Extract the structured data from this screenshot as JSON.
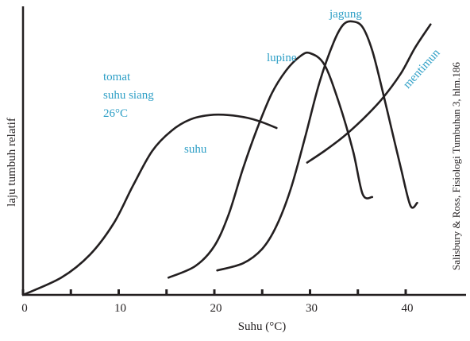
{
  "chart_data": {
    "type": "line",
    "xlabel": "Suhu (°C)",
    "ylabel": "laju tumbuh relatif",
    "xlim": [
      0,
      46
    ],
    "ylim": [
      0,
      1
    ],
    "x_ticks": [
      0,
      5,
      10,
      15,
      20,
      25,
      30,
      35,
      40
    ],
    "x_tick_labels": [
      "0",
      "10",
      "20",
      "30",
      "40"
    ],
    "x_tick_label_values": [
      0,
      10,
      20,
      30,
      40
    ],
    "grid": false,
    "legend": "none",
    "series": [
      {
        "name": "tomat",
        "x": [
          0,
          4,
          7,
          9.5,
          11.5,
          13.5,
          15.5,
          17.5,
          19.5,
          21.5,
          23.5,
          25,
          26.5
        ],
        "y": [
          0,
          0.06,
          0.14,
          0.25,
          0.38,
          0.5,
          0.57,
          0.61,
          0.625,
          0.625,
          0.615,
          0.6,
          0.58
        ]
      },
      {
        "name": "lupine",
        "x": [
          15.2,
          18,
          20,
          21.5,
          23,
          24.5,
          26,
          27.5,
          29,
          30,
          31.5,
          33,
          34.5,
          35.5,
          36.5
        ],
        "y": [
          0.06,
          0.1,
          0.17,
          0.28,
          0.44,
          0.58,
          0.7,
          0.78,
          0.83,
          0.84,
          0.8,
          0.67,
          0.5,
          0.35,
          0.34
        ]
      },
      {
        "name": "jagung",
        "x": [
          20.3,
          23,
          25,
          26.5,
          28,
          29.5,
          31,
          32.5,
          33.5,
          34.5,
          35.5,
          36.5,
          37.5,
          38.5,
          39.5,
          40.5,
          41.2
        ],
        "y": [
          0.085,
          0.11,
          0.16,
          0.24,
          0.37,
          0.55,
          0.74,
          0.88,
          0.94,
          0.95,
          0.93,
          0.85,
          0.72,
          0.58,
          0.44,
          0.31,
          0.32
        ]
      },
      {
        "name": "mentimun",
        "x": [
          29.7,
          31.5,
          33.5,
          35.5,
          37.5,
          39.5,
          41,
          42.6
        ],
        "y": [
          0.46,
          0.5,
          0.55,
          0.61,
          0.68,
          0.77,
          0.86,
          0.94
        ]
      }
    ],
    "annotations": {
      "tomat_note": [
        "tomat",
        "suhu siang",
        "26°C"
      ],
      "suhu": "suhu",
      "lupine": "lupine",
      "jagung": "jagung",
      "mentimun": "mentimun"
    },
    "credit": "Salisbury & Ross, Fisiologi Tumbuhan 3, hlm.186",
    "colors": {
      "line": "#231f20",
      "label": "#2e9fc6"
    }
  }
}
